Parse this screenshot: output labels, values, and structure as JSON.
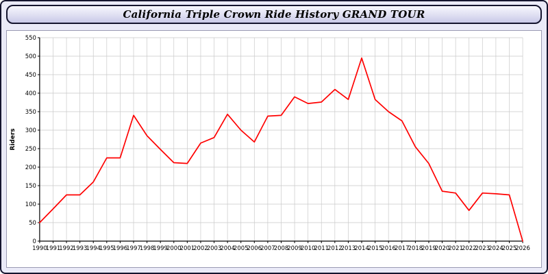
{
  "window": {
    "title": "California Triple Crown Ride History GRAND TOUR"
  },
  "colors": {
    "background": "#eaeaf8",
    "titlebar_bg": "#c9c9e8",
    "titlebar_border": "#14142e",
    "panel_bg": "#ffffff",
    "panel_border": "#9a9ab2",
    "grid": "#c9c9c9",
    "axis": "#000000",
    "text": "#000000",
    "line": "#ff0000"
  },
  "chart_data": {
    "type": "line",
    "title": "California Triple Crown Ride History GRAND TOUR",
    "xlabel": "",
    "ylabel": "Riders",
    "ylim": [
      0,
      550
    ],
    "ytick_step": 50,
    "grid": true,
    "legend": false,
    "line_color": "#ff0000",
    "categories": [
      1990,
      1991,
      1992,
      1993,
      1994,
      1995,
      1996,
      1997,
      1998,
      1999,
      2000,
      2001,
      2002,
      2003,
      2004,
      2005,
      2006,
      2007,
      2008,
      2009,
      2010,
      2011,
      2012,
      2013,
      2014,
      2015,
      2016,
      2017,
      2018,
      2019,
      2020,
      2021,
      2022,
      2023,
      2024,
      2025,
      2026
    ],
    "values": [
      50,
      87,
      125,
      125,
      160,
      225,
      225,
      340,
      285,
      248,
      212,
      210,
      265,
      280,
      343,
      300,
      268,
      338,
      340,
      390,
      372,
      376,
      410,
      383,
      495,
      383,
      350,
      325,
      255,
      210,
      135,
      130,
      83,
      130,
      128,
      125,
      0
    ]
  }
}
